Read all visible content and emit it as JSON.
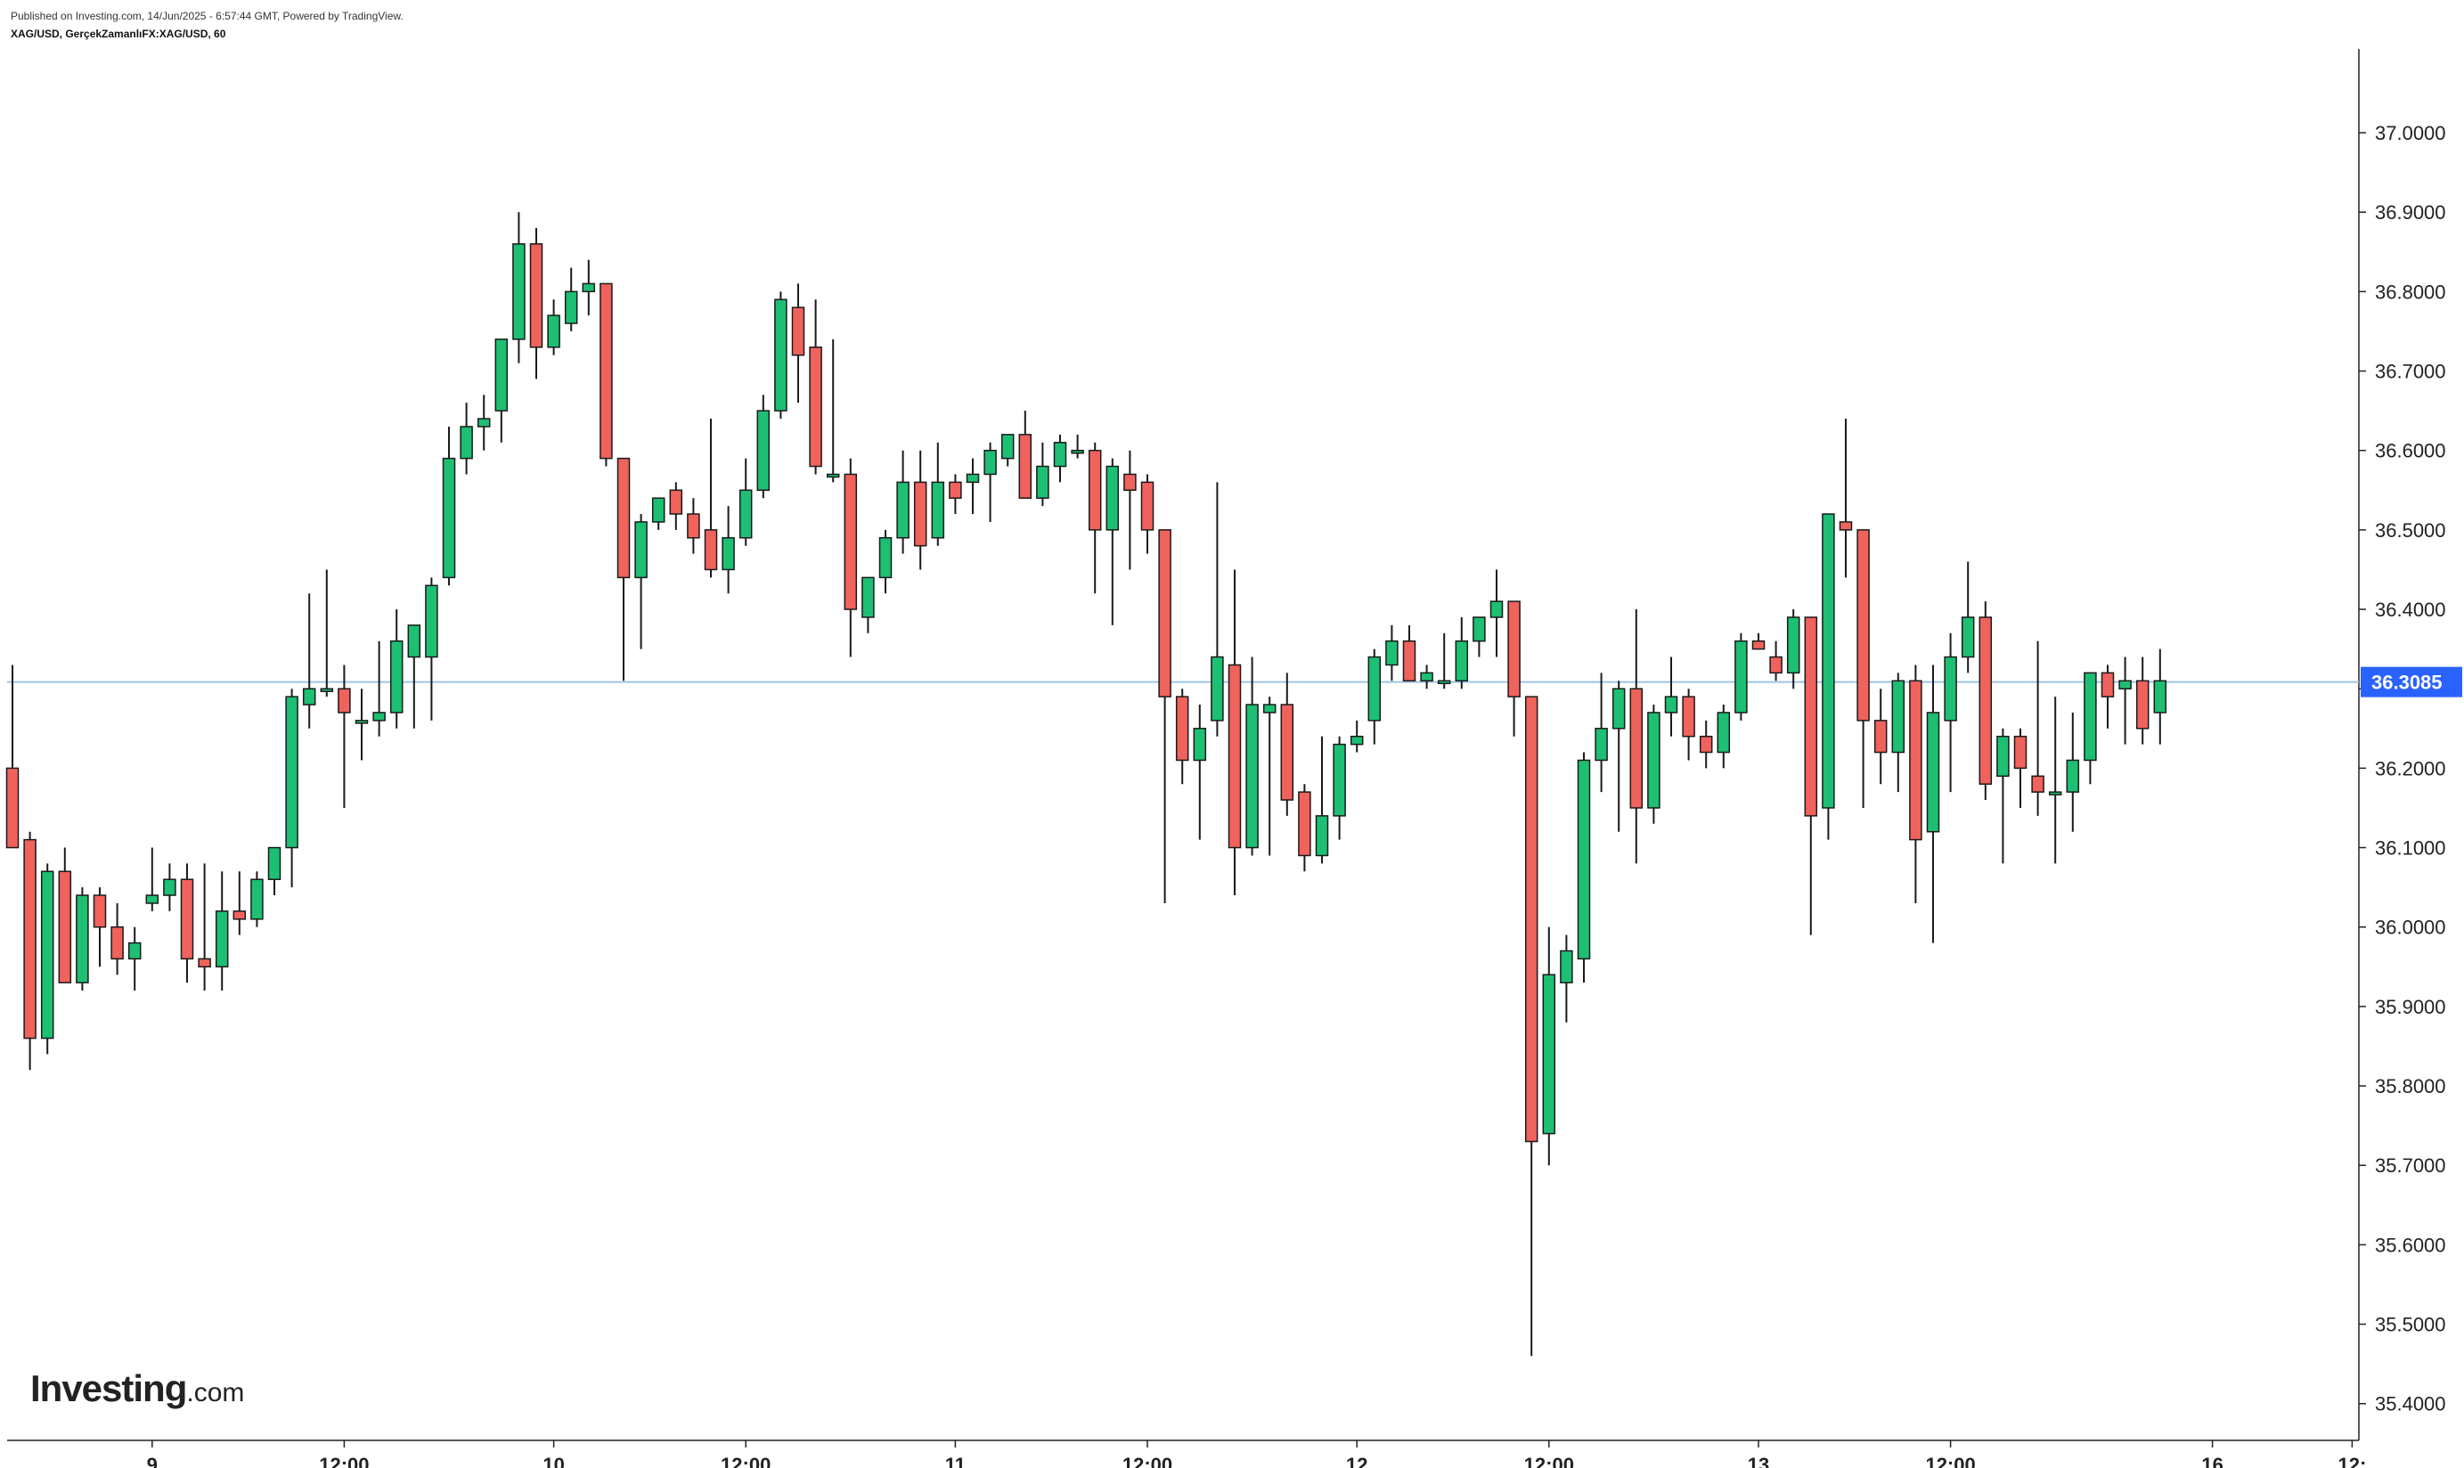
{
  "header": {
    "published": "Published on Investing.com, 14/Jun/2025 - 6:57:44 GMT, Powered by TradingView.",
    "symbol": "XAG/USD, GerçekZamanlıFX:XAG/USD, 60"
  },
  "logo": {
    "main": "Investing",
    "suffix": ".com"
  },
  "colors": {
    "up": "#1dbf73",
    "down": "#f0625c",
    "last_price_line": "#9ec4e6",
    "last_price_badge": "#2962ff",
    "axis": "#222222"
  },
  "chart_data": {
    "type": "candlestick",
    "ylim": [
      35.37,
      37.06
    ],
    "y_ticks": [
      "35.4000",
      "35.5000",
      "35.6000",
      "35.7000",
      "35.8000",
      "35.9000",
      "36.0000",
      "36.1000",
      "36.2000",
      "36.3000",
      "36.4000",
      "36.5000",
      "36.6000",
      "36.7000",
      "36.8000",
      "36.9000",
      "37.0000"
    ],
    "x_ticks": [
      {
        "index": 8,
        "label": "9"
      },
      {
        "index": 19,
        "label": "12:00"
      },
      {
        "index": 31,
        "label": "10"
      },
      {
        "index": 42,
        "label": "12:00"
      },
      {
        "index": 54,
        "label": "11"
      },
      {
        "index": 65,
        "label": "12:00"
      },
      {
        "index": 77,
        "label": "12"
      },
      {
        "index": 88,
        "label": "12:00"
      },
      {
        "index": 100,
        "label": "13"
      },
      {
        "index": 111,
        "label": "12:00"
      },
      {
        "index": 126,
        "label": "16"
      },
      {
        "index": 134,
        "label": "12:"
      }
    ],
    "last_price": "36.3085",
    "last_price_value": 36.3085,
    "candles": [
      [
        36.2,
        36.33,
        36.1,
        36.1
      ],
      [
        36.11,
        36.12,
        35.82,
        35.86
      ],
      [
        35.86,
        36.08,
        35.84,
        36.07
      ],
      [
        36.07,
        36.1,
        35.93,
        35.93
      ],
      [
        35.93,
        36.05,
        35.92,
        36.04
      ],
      [
        36.04,
        36.05,
        35.95,
        36.0
      ],
      [
        36.0,
        36.03,
        35.94,
        35.96
      ],
      [
        35.96,
        36.0,
        35.92,
        35.98
      ],
      [
        36.03,
        36.1,
        36.02,
        36.04
      ],
      [
        36.04,
        36.08,
        36.02,
        36.06
      ],
      [
        36.06,
        36.08,
        35.93,
        35.96
      ],
      [
        35.96,
        36.08,
        35.92,
        35.95
      ],
      [
        35.95,
        36.07,
        35.92,
        36.02
      ],
      [
        36.02,
        36.07,
        35.99,
        36.01
      ],
      [
        36.01,
        36.07,
        36.0,
        36.06
      ],
      [
        36.06,
        36.1,
        36.04,
        36.1
      ],
      [
        36.1,
        36.3,
        36.05,
        36.29
      ],
      [
        36.28,
        36.42,
        36.25,
        36.3
      ],
      [
        36.3,
        36.45,
        36.29,
        36.3
      ],
      [
        36.3,
        36.33,
        36.15,
        36.27
      ],
      [
        36.26,
        36.3,
        36.21,
        36.26
      ],
      [
        36.26,
        36.36,
        36.24,
        36.27
      ],
      [
        36.27,
        36.4,
        36.25,
        36.36
      ],
      [
        36.34,
        36.38,
        36.25,
        36.38
      ],
      [
        36.34,
        36.44,
        36.26,
        36.43
      ],
      [
        36.44,
        36.63,
        36.43,
        36.59
      ],
      [
        36.59,
        36.66,
        36.57,
        36.63
      ],
      [
        36.63,
        36.67,
        36.6,
        36.64
      ],
      [
        36.65,
        36.74,
        36.61,
        36.74
      ],
      [
        36.74,
        36.9,
        36.71,
        36.86
      ],
      [
        36.86,
        36.88,
        36.69,
        36.73
      ],
      [
        36.73,
        36.79,
        36.72,
        36.77
      ],
      [
        36.76,
        36.83,
        36.75,
        36.8
      ],
      [
        36.8,
        36.84,
        36.77,
        36.81
      ],
      [
        36.81,
        36.81,
        36.58,
        36.59
      ],
      [
        36.59,
        36.59,
        36.31,
        36.44
      ],
      [
        36.44,
        36.52,
        36.35,
        36.51
      ],
      [
        36.51,
        36.53,
        36.5,
        36.54
      ],
      [
        36.55,
        36.56,
        36.5,
        36.52
      ],
      [
        36.52,
        36.54,
        36.47,
        36.49
      ],
      [
        36.5,
        36.64,
        36.44,
        36.45
      ],
      [
        36.45,
        36.53,
        36.42,
        36.49
      ],
      [
        36.49,
        36.59,
        36.48,
        36.55
      ],
      [
        36.55,
        36.67,
        36.54,
        36.65
      ],
      [
        36.65,
        36.8,
        36.64,
        36.79
      ],
      [
        36.78,
        36.81,
        36.66,
        36.72
      ],
      [
        36.73,
        36.79,
        36.57,
        36.58
      ],
      [
        36.57,
        36.74,
        36.56,
        36.57
      ],
      [
        36.57,
        36.59,
        36.34,
        36.4
      ],
      [
        36.39,
        36.44,
        36.37,
        36.44
      ],
      [
        36.44,
        36.5,
        36.42,
        36.49
      ],
      [
        36.49,
        36.6,
        36.47,
        36.56
      ],
      [
        36.56,
        36.6,
        36.45,
        36.48
      ],
      [
        36.49,
        36.61,
        36.48,
        36.56
      ],
      [
        36.56,
        36.57,
        36.52,
        36.54
      ],
      [
        36.56,
        36.59,
        36.52,
        36.57
      ],
      [
        36.57,
        36.61,
        36.51,
        36.6
      ],
      [
        36.59,
        36.62,
        36.58,
        36.62
      ],
      [
        36.62,
        36.65,
        36.54,
        36.54
      ],
      [
        36.54,
        36.61,
        36.53,
        36.58
      ],
      [
        36.58,
        36.62,
        36.56,
        36.61
      ],
      [
        36.6,
        36.62,
        36.59,
        36.6
      ],
      [
        36.6,
        36.61,
        36.42,
        36.5
      ],
      [
        36.5,
        36.59,
        36.38,
        36.58
      ],
      [
        36.57,
        36.6,
        36.45,
        36.55
      ],
      [
        36.56,
        36.57,
        36.47,
        36.5
      ],
      [
        36.5,
        36.5,
        36.03,
        36.29
      ],
      [
        36.29,
        36.3,
        36.18,
        36.21
      ],
      [
        36.21,
        36.28,
        36.11,
        36.25
      ],
      [
        36.26,
        36.56,
        36.24,
        36.34
      ],
      [
        36.33,
        36.45,
        36.04,
        36.1
      ],
      [
        36.1,
        36.34,
        36.09,
        36.28
      ],
      [
        36.27,
        36.29,
        36.09,
        36.28
      ],
      [
        36.28,
        36.32,
        36.14,
        36.16
      ],
      [
        36.17,
        36.18,
        36.07,
        36.09
      ],
      [
        36.09,
        36.24,
        36.08,
        36.14
      ],
      [
        36.14,
        36.24,
        36.11,
        36.23
      ],
      [
        36.23,
        36.26,
        36.22,
        36.24
      ],
      [
        36.26,
        36.35,
        36.23,
        36.34
      ],
      [
        36.33,
        36.38,
        36.31,
        36.36
      ],
      [
        36.36,
        36.38,
        36.31,
        36.31
      ],
      [
        36.31,
        36.33,
        36.3,
        36.32
      ],
      [
        36.31,
        36.37,
        36.3,
        36.31
      ],
      [
        36.31,
        36.39,
        36.3,
        36.36
      ],
      [
        36.36,
        36.39,
        36.34,
        36.39
      ],
      [
        36.39,
        36.45,
        36.34,
        36.41
      ],
      [
        36.41,
        36.41,
        36.24,
        36.29
      ],
      [
        36.29,
        36.29,
        35.46,
        35.73
      ],
      [
        35.74,
        36.0,
        35.7,
        35.94
      ],
      [
        35.93,
        35.99,
        35.88,
        35.97
      ],
      [
        35.96,
        36.22,
        35.93,
        36.21
      ],
      [
        36.21,
        36.32,
        36.17,
        36.25
      ],
      [
        36.25,
        36.31,
        36.12,
        36.3
      ],
      [
        36.3,
        36.4,
        36.08,
        36.15
      ],
      [
        36.15,
        36.28,
        36.13,
        36.27
      ],
      [
        36.27,
        36.34,
        36.24,
        36.29
      ],
      [
        36.29,
        36.3,
        36.21,
        36.24
      ],
      [
        36.24,
        36.26,
        36.2,
        36.22
      ],
      [
        36.22,
        36.28,
        36.2,
        36.27
      ],
      [
        36.27,
        36.37,
        36.26,
        36.36
      ],
      [
        36.36,
        36.37,
        36.35,
        36.35
      ],
      [
        36.34,
        36.36,
        36.31,
        36.32
      ],
      [
        36.32,
        36.4,
        36.3,
        36.39
      ],
      [
        36.39,
        36.39,
        35.99,
        36.14
      ],
      [
        36.15,
        36.52,
        36.11,
        36.52
      ],
      [
        36.51,
        36.64,
        36.44,
        36.5
      ],
      [
        36.5,
        36.5,
        36.15,
        36.26
      ],
      [
        36.26,
        36.3,
        36.18,
        36.22
      ],
      [
        36.22,
        36.32,
        36.17,
        36.31
      ],
      [
        36.31,
        36.33,
        36.03,
        36.11
      ],
      [
        36.12,
        36.33,
        35.98,
        36.27
      ],
      [
        36.26,
        36.37,
        36.17,
        36.34
      ],
      [
        36.34,
        36.46,
        36.32,
        36.39
      ],
      [
        36.39,
        36.41,
        36.16,
        36.18
      ],
      [
        36.19,
        36.25,
        36.08,
        36.24
      ],
      [
        36.24,
        36.25,
        36.15,
        36.2
      ],
      [
        36.19,
        36.36,
        36.14,
        36.17
      ],
      [
        36.17,
        36.29,
        36.08,
        36.17
      ],
      [
        36.17,
        36.27,
        36.12,
        36.21
      ],
      [
        36.21,
        36.32,
        36.18,
        36.32
      ],
      [
        36.32,
        36.33,
        36.25,
        36.29
      ],
      [
        36.3,
        36.34,
        36.23,
        36.31
      ],
      [
        36.31,
        36.34,
        36.23,
        36.25
      ],
      [
        36.27,
        36.35,
        36.23,
        36.31
      ]
    ]
  }
}
